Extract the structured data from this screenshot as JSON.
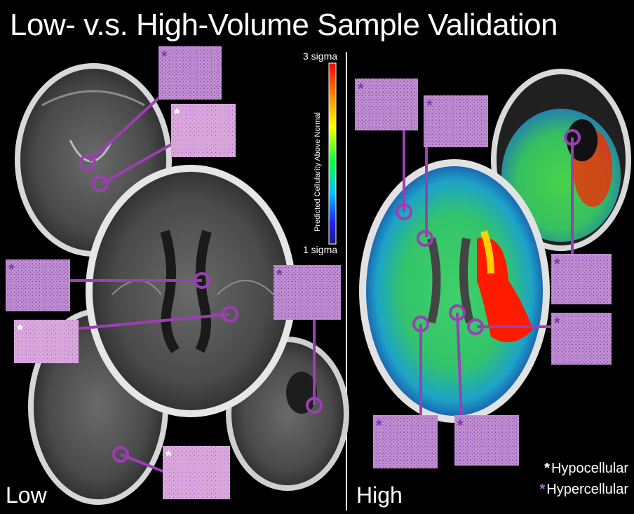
{
  "title": "Low- v.s. High-Volume Sample Validation",
  "panels": {
    "low_label": "Low",
    "high_label": "High"
  },
  "colorbar": {
    "top_label": "3 sigma",
    "bottom_label": "1 sigma",
    "axis_label": "Predicted Cellularity Above Normal",
    "gradient": [
      "#ff0000",
      "#ff8800",
      "#ffff00",
      "#00ff44",
      "#00c0ff",
      "#2020ff",
      "#1a1a80"
    ]
  },
  "legend": {
    "hypocellular": {
      "marker": "*",
      "label": "Hypocellular",
      "color": "#ffffff"
    },
    "hypercellular": {
      "marker": "*",
      "label": "Hypercellular",
      "color": "#a070c0"
    }
  },
  "colors": {
    "connector": "#9b3fb3",
    "histology": "#d9a6dc",
    "histology_dark": "#b77ec4",
    "divider": "#ffffff"
  }
}
